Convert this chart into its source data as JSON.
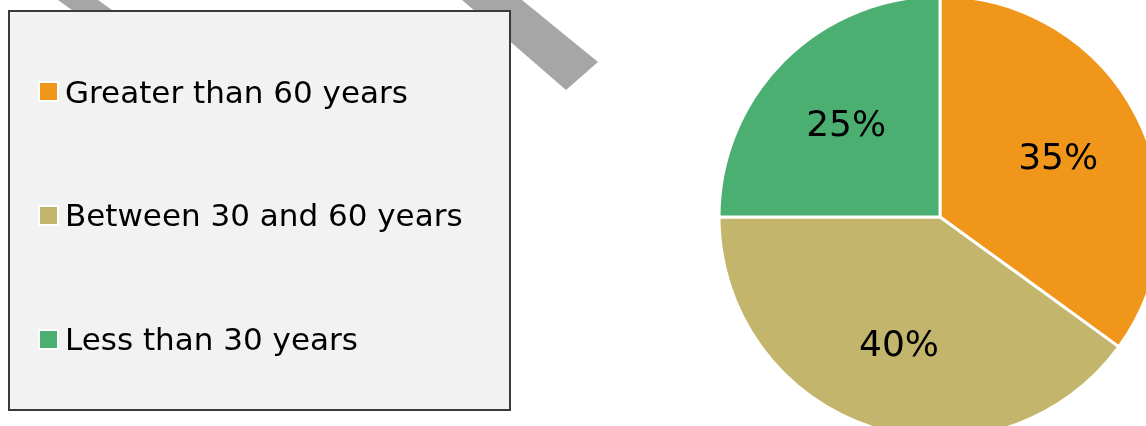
{
  "chart_data": {
    "type": "pie",
    "categories": [
      "Greater than 60 years",
      "Between 30 and 60 years",
      "Less than 30 years"
    ],
    "values": [
      35,
      40,
      25
    ],
    "colors": [
      "#f0961a",
      "#c3b56b",
      "#4caf72"
    ],
    "value_labels": [
      "35%",
      "40%",
      "25%"
    ],
    "legend": "left"
  }
}
